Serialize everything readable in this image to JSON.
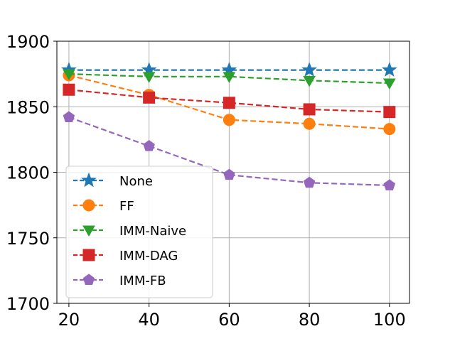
{
  "chart_data": {
    "type": "line",
    "title": "",
    "xlabel": "",
    "ylabel": "",
    "x": [
      20,
      40,
      60,
      80,
      100
    ],
    "xlim": [
      17,
      105
    ],
    "ylim": [
      1700,
      1900
    ],
    "xticks": [
      20,
      40,
      60,
      80,
      100
    ],
    "yticks": [
      1700,
      1750,
      1800,
      1850,
      1900
    ],
    "xtick_labels": [
      "20",
      "40",
      "60",
      "80",
      "100"
    ],
    "ytick_labels": [
      "1700",
      "1750",
      "1800",
      "1850",
      "1900"
    ],
    "grid": true,
    "legend_position": "lower-left",
    "series": [
      {
        "name": "None",
        "color": "#1f77b4",
        "marker": "star",
        "values": [
          1878,
          1878,
          1878,
          1878,
          1878
        ]
      },
      {
        "name": "FF",
        "color": "#ff7f0e",
        "marker": "circle",
        "values": [
          1874,
          1859,
          1840,
          1837,
          1833
        ]
      },
      {
        "name": "IMM-Naive",
        "color": "#2ca02c",
        "marker": "triangle-down",
        "values": [
          1875,
          1873,
          1873,
          1870,
          1868
        ]
      },
      {
        "name": "IMM-DAG",
        "color": "#d62728",
        "marker": "square",
        "values": [
          1863,
          1857,
          1853,
          1848,
          1846
        ]
      },
      {
        "name": "IMM-FB",
        "color": "#9467bd",
        "marker": "pentagon",
        "values": [
          1842,
          1820,
          1798,
          1792,
          1790
        ]
      }
    ]
  }
}
